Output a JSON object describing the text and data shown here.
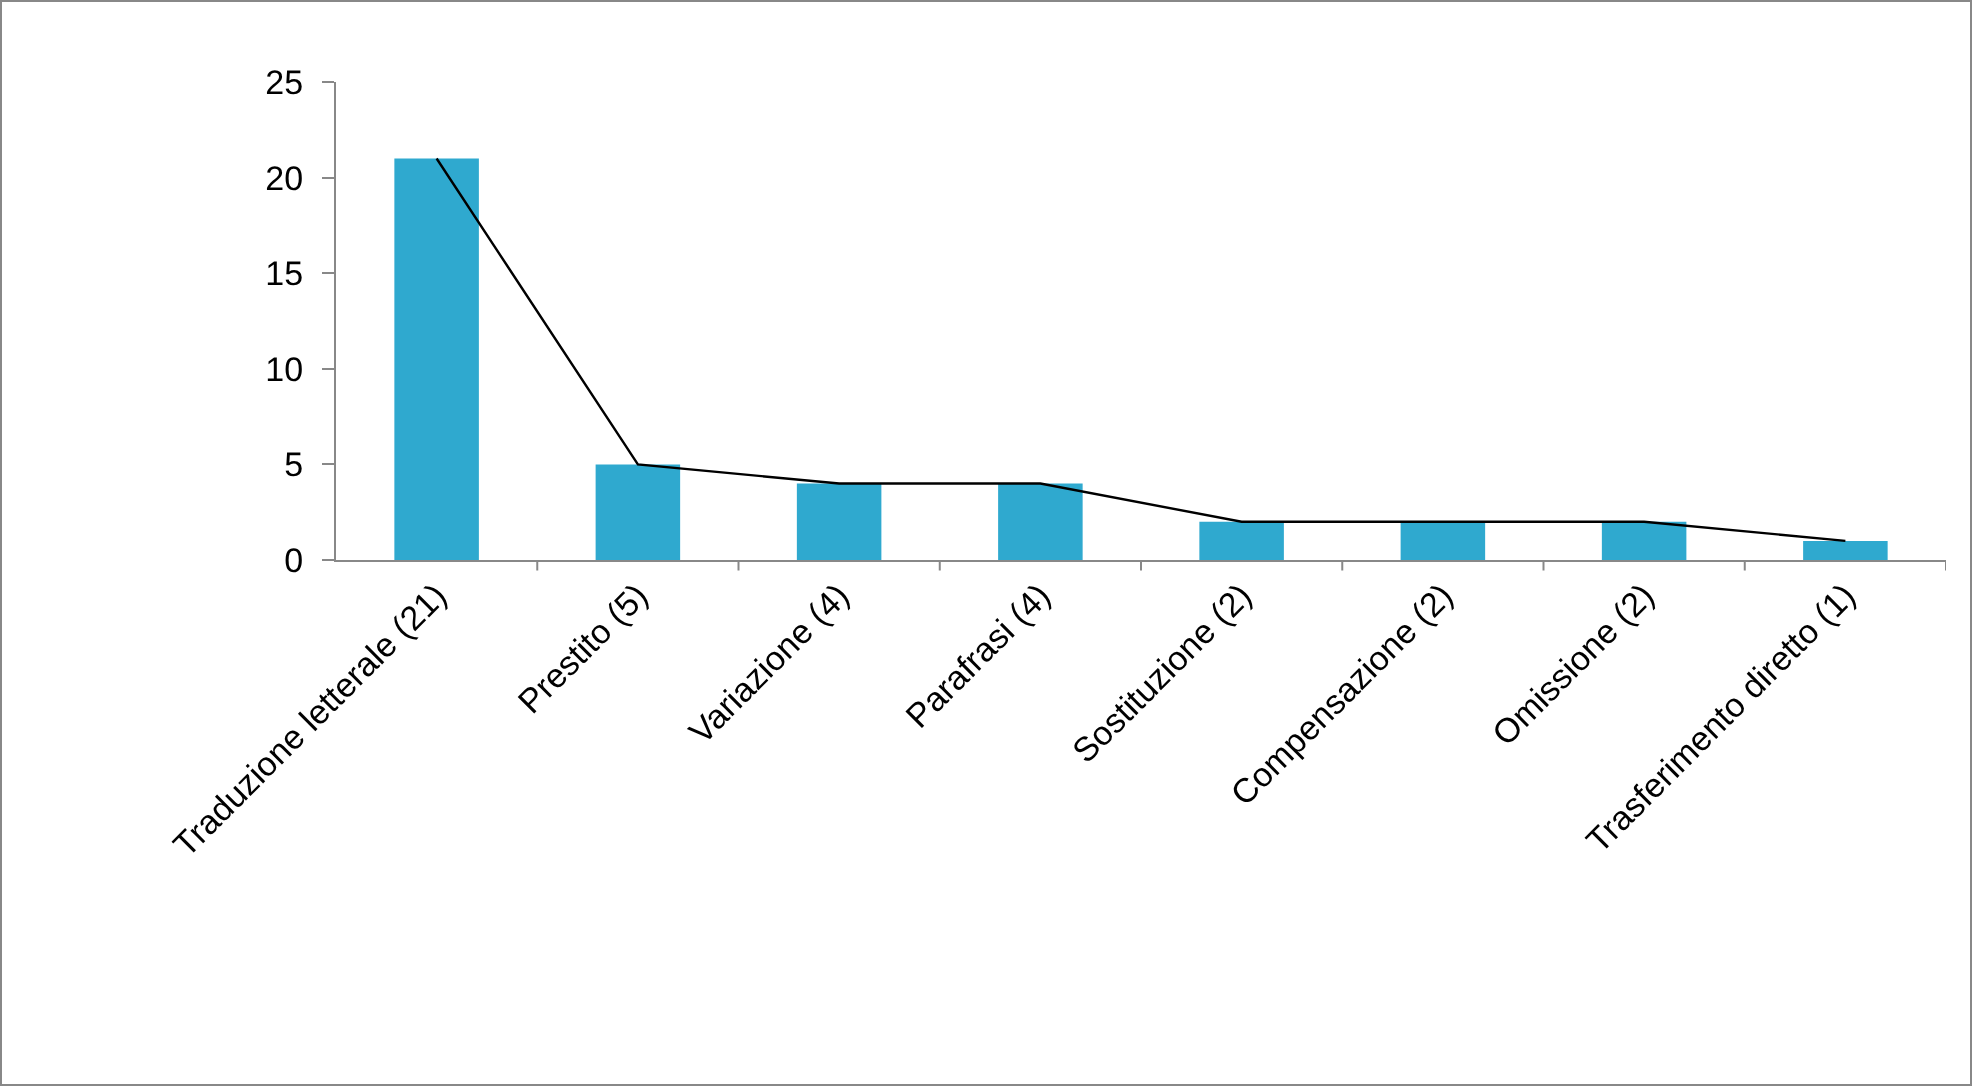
{
  "chart_data": {
    "type": "bar",
    "categories": [
      "Traduzione letterale (21)",
      "Prestito (5)",
      "Variazione (4)",
      "Parafrasi (4)",
      "Sostituzione (2)",
      "Compensazione (2)",
      "Omissione (2)",
      "Trasferimento diretto (1)"
    ],
    "series": [
      {
        "color": "#2fa9cf",
        "values": [
          21,
          5,
          4,
          4,
          2,
          2,
          2,
          1
        ]
      },
      {
        "type": "line",
        "color": "#000000",
        "values": [
          21,
          5,
          4,
          4,
          2,
          2,
          2,
          1
        ]
      }
    ],
    "ylim": [
      0,
      25
    ],
    "yticks": [
      0,
      5,
      10,
      15,
      20,
      25
    ],
    "grid": false,
    "legend": false,
    "marker": "none",
    "line_style": "solid"
  }
}
